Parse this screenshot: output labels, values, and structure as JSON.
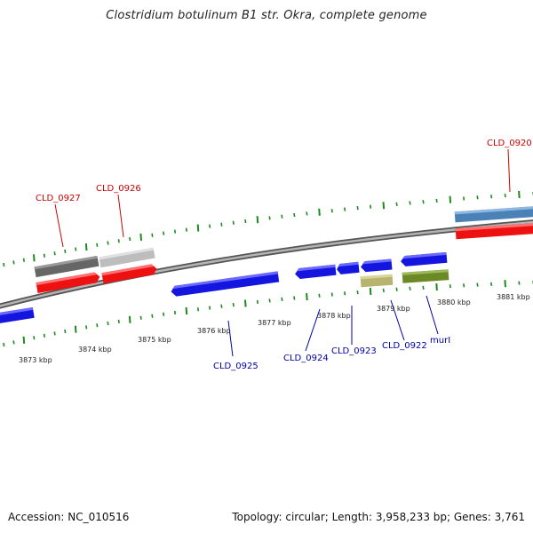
{
  "title": "Clostridium botulinum B1 str. Okra, complete genome",
  "footer": {
    "accession": "Accession: NC_010516",
    "summary": "Topology: circular; Length: 3,958,233 bp; Genes: 3,761"
  },
  "colors": {
    "backbone": "#888888",
    "tick": "#1e8a1e",
    "forward_label": "#cc0000",
    "reverse_label": "#0000aa",
    "leader_forward": "#cc0000",
    "leader_reverse": "#0000aa"
  },
  "scale_labels": [
    "3873 kbp",
    "3874 kbp",
    "3875 kbp",
    "3876 kbp",
    "3877 kbp",
    "3878 kbp",
    "3879 kbp",
    "3880 kbp",
    "3881 kbp"
  ],
  "gene_labels": {
    "forward": [
      "CLD_0927",
      "CLD_0926",
      "CLD_0920"
    ],
    "reverse": [
      "CLD_0925",
      "CLD_0924",
      "CLD_0923",
      "CLD_0922",
      "murI"
    ]
  }
}
